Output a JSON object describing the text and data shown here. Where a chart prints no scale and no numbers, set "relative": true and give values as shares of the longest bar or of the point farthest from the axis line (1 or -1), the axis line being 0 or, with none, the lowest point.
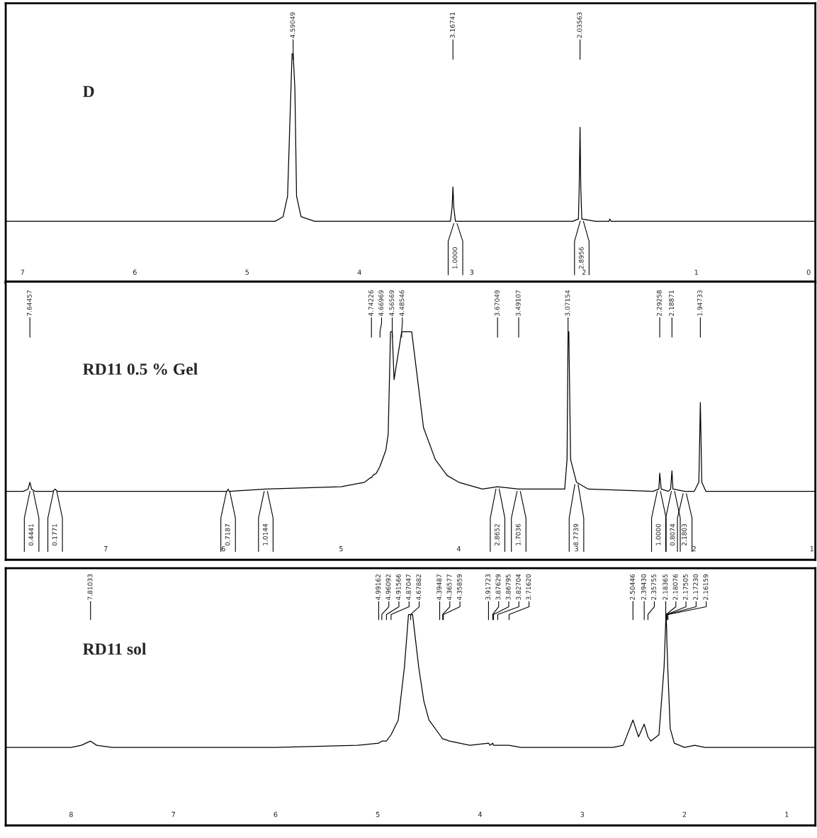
{
  "chart_data": [
    {
      "type": "line",
      "title": "D",
      "relative": true,
      "xlim": [
        7.15,
        -0.06
      ],
      "xticks": [
        7,
        6,
        5,
        4,
        3,
        2,
        1,
        0
      ],
      "series": [
        {
          "color": "#000000",
          "x": [
            7.15,
            5.0,
            4.75,
            4.68,
            4.64,
            4.61,
            4.6,
            4.59049,
            4.575,
            4.56,
            4.52,
            4.4,
            3.3,
            3.19,
            3.175,
            3.16741,
            3.16,
            3.145,
            2.1,
            2.05,
            2.043,
            2.03563,
            2.029,
            2.02,
            1.9,
            1.78,
            1.77,
            1.76,
            -0.06
          ],
          "values": [
            0.27,
            0.27,
            0.27,
            0.29,
            0.38,
            0.85,
            1,
            1,
            0.85,
            0.38,
            0.29,
            0.27,
            0.27,
            0.27,
            0.33,
            0.42,
            0.33,
            0.27,
            0.27,
            0.28,
            0.42,
            0.68,
            0.42,
            0.28,
            0.27,
            0.27,
            0.28,
            0.27,
            0.27
          ]
        }
      ],
      "annotations": [
        {
          "text": "4.59049",
          "x": 4.59049
        },
        {
          "text": "3.16741",
          "x": 3.16741
        },
        {
          "text": "2.03563",
          "x": 2.03563
        },
        {
          "text": "1.0000",
          "x": 3.145,
          "y": 0.27
        },
        {
          "text": "2.8956",
          "x": 2.02,
          "y": 0.28
        }
      ]
    },
    {
      "type": "line",
      "title": "RD11 0.5 % Gel",
      "relative": true,
      "xlim": [
        7.85,
        0.97
      ],
      "xticks": [
        7,
        6,
        5,
        4,
        3,
        2,
        1
      ],
      "series": [
        {
          "color": "#000000",
          "x": [
            7.85,
            7.7,
            7.66,
            7.64457,
            7.63,
            7.6,
            7.45,
            7.43,
            7.41,
            6.5,
            5.97,
            5.96,
            5.95,
            5.64,
            5.0,
            4.8,
            4.75,
            4.74226,
            4.73,
            4.7,
            4.66969,
            4.62,
            4.6,
            4.58,
            4.56569,
            4.55,
            4.48546,
            4.4,
            4.35,
            4.3,
            4.2,
            4.1,
            4.0,
            3.8,
            3.67049,
            3.49107,
            3.3,
            3.1,
            3.08,
            3.07154,
            3.065,
            3.05,
            3.0,
            2.9,
            2.35,
            2.3,
            2.29258,
            2.28,
            2.22,
            2.2,
            2.18871,
            2.18,
            2.08,
            2.0,
            1.96,
            1.94733,
            1.935,
            1.9,
            0.97
          ],
          "values": [
            0.3,
            0.3,
            0.31,
            0.34,
            0.31,
            0.3,
            0.3,
            0.31,
            0.3,
            0.3,
            0.3,
            0.31,
            0.3,
            0.31,
            0.32,
            0.34,
            0.36,
            0.36,
            0.37,
            0.38,
            0.41,
            0.48,
            0.55,
            1,
            1,
            0.79,
            1,
            1,
            0.79,
            0.58,
            0.44,
            0.37,
            0.34,
            0.31,
            0.32,
            0.31,
            0.31,
            0.31,
            0.44,
            1,
            1,
            0.44,
            0.34,
            0.31,
            0.3,
            0.31,
            0.38,
            0.31,
            0.3,
            0.31,
            0.39,
            0.31,
            0.3,
            0.3,
            0.34,
            0.69,
            0.34,
            0.3,
            0.3
          ]
        }
      ],
      "annotations": [
        {
          "text": "7.64457",
          "x": 7.64457
        },
        {
          "text": "4.74226",
          "x": 4.74226
        },
        {
          "text": "4.66969",
          "x": 4.66969
        },
        {
          "text": "4.56569",
          "x": 4.56569
        },
        {
          "text": "4.48546",
          "x": 4.48546
        },
        {
          "text": "3.67049",
          "x": 3.67049
        },
        {
          "text": "3.49107",
          "x": 3.49107
        },
        {
          "text": "3.07154",
          "x": 3.07154
        },
        {
          "text": "2.29258",
          "x": 2.29258
        },
        {
          "text": "2.18871",
          "x": 2.18871
        },
        {
          "text": "1.94733",
          "x": 1.94733
        },
        {
          "text": "0.4441",
          "x": 7.63,
          "y": 0.31
        },
        {
          "text": "0.1771",
          "x": 7.43,
          "y": 0.31
        },
        {
          "text": "0.7187",
          "x": 5.96,
          "y": 0.31
        },
        {
          "text": "1.0144",
          "x": 5.64,
          "y": 0.31
        },
        {
          "text": "2.8652",
          "x": 3.67049,
          "y": 0.32
        },
        {
          "text": "1.7036",
          "x": 3.49107,
          "y": 0.31
        },
        {
          "text": "8.7739",
          "x": 3.0,
          "y": 0.34
        },
        {
          "text": "1.0000",
          "x": 2.3,
          "y": 0.31
        },
        {
          "text": "0.8074",
          "x": 2.18,
          "y": 0.31
        },
        {
          "text": "2.1803",
          "x": 2.08,
          "y": 0.3
        }
      ]
    },
    {
      "type": "line",
      "title": "RD11 sol",
      "relative": true,
      "xlim": [
        8.64,
        0.72
      ],
      "xticks": [
        8,
        7,
        6,
        5,
        4,
        3,
        2,
        1
      ],
      "series": [
        {
          "color": "#000000",
          "x": [
            8.64,
            8.0,
            7.9,
            7.81033,
            7.75,
            7.6,
            6.0,
            5.2,
            4.99162,
            4.96092,
            4.91566,
            4.87047,
            4.8,
            4.74,
            4.7,
            4.67882,
            4.66,
            4.6,
            4.55,
            4.5,
            4.39487,
            4.36577,
            4.35859,
            4.3,
            4.1,
            3.91723,
            3.9,
            3.87629,
            3.86795,
            3.82704,
            3.8,
            3.7162,
            3.6,
            3.0,
            2.7,
            2.6,
            2.50446,
            2.45,
            2.3943,
            2.35755,
            2.33,
            2.25,
            2.2,
            2.18365,
            2.18076,
            2.17505,
            2.1723,
            2.16159,
            2.14,
            2.1,
            2.0,
            1.9,
            1.8,
            0.72
          ],
          "values": [
            0.37,
            0.37,
            0.38,
            0.4,
            0.38,
            0.37,
            0.37,
            0.38,
            0.39,
            0.4,
            0.4,
            0.43,
            0.5,
            0.75,
            1,
            1,
            1,
            0.75,
            0.59,
            0.5,
            0.43,
            0.41,
            0.41,
            0.4,
            0.38,
            0.39,
            0.38,
            0.39,
            0.38,
            0.38,
            0.38,
            0.38,
            0.37,
            0.37,
            0.37,
            0.38,
            0.5,
            0.42,
            0.48,
            0.42,
            0.4,
            0.43,
            0.75,
            0.97,
            1,
            0.94,
            0.87,
            0.72,
            0.46,
            0.39,
            0.37,
            0.38,
            0.37,
            0.37
          ]
        }
      ],
      "annotations": [
        {
          "text": "7.81033",
          "x": 7.81033
        },
        {
          "text": "4.99162",
          "x": 4.99162
        },
        {
          "text": "4.96092",
          "x": 4.96092
        },
        {
          "text": "4.91566",
          "x": 4.91566
        },
        {
          "text": "4.87047",
          "x": 4.87047
        },
        {
          "text": "4.67882",
          "x": 4.67882
        },
        {
          "text": "4.39487",
          "x": 4.39487
        },
        {
          "text": "4.36577",
          "x": 4.36577
        },
        {
          "text": "4.35859",
          "x": 4.35859
        },
        {
          "text": "3.91723",
          "x": 3.91723
        },
        {
          "text": "3.87629",
          "x": 3.87629
        },
        {
          "text": "3.86795",
          "x": 3.86795
        },
        {
          "text": "3.82704",
          "x": 3.82704
        },
        {
          "text": "3.71620",
          "x": 3.7162
        },
        {
          "text": "2.50446",
          "x": 2.50446
        },
        {
          "text": "2.39430",
          "x": 2.3943
        },
        {
          "text": "2.35755",
          "x": 2.35755
        },
        {
          "text": "2.18365",
          "x": 2.18365
        },
        {
          "text": "2.18076",
          "x": 2.18076
        },
        {
          "text": "2.17505",
          "x": 2.17505
        },
        {
          "text": "2.17230",
          "x": 2.1723
        },
        {
          "text": "2.16159",
          "x": 2.16159
        }
      ]
    }
  ]
}
